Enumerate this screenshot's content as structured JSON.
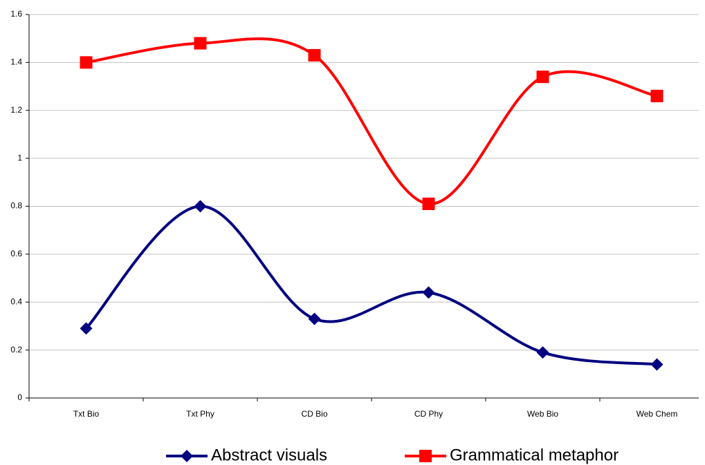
{
  "chart_data": {
    "type": "line",
    "smooth": true,
    "categories": [
      "Txt Bio",
      "Txt Phy",
      "CD Bio",
      "CD Phy",
      "Web Bio",
      "Web Chem"
    ],
    "series": [
      {
        "name": "Abstract visuals",
        "color": "#000080",
        "marker": "diamond",
        "values": [
          0.29,
          0.8,
          0.33,
          0.44,
          0.19,
          0.14
        ]
      },
      {
        "name": "Grammatical metaphor",
        "color": "#ff0000",
        "marker": "square",
        "values": [
          1.4,
          1.48,
          1.43,
          0.81,
          1.34,
          1.26
        ]
      }
    ],
    "ylim": [
      0,
      1.6
    ],
    "yticks": [
      0,
      0.2,
      0.4,
      0.6,
      0.8,
      1,
      1.2,
      1.4,
      1.6
    ],
    "grid": true,
    "legend": "bottom"
  }
}
